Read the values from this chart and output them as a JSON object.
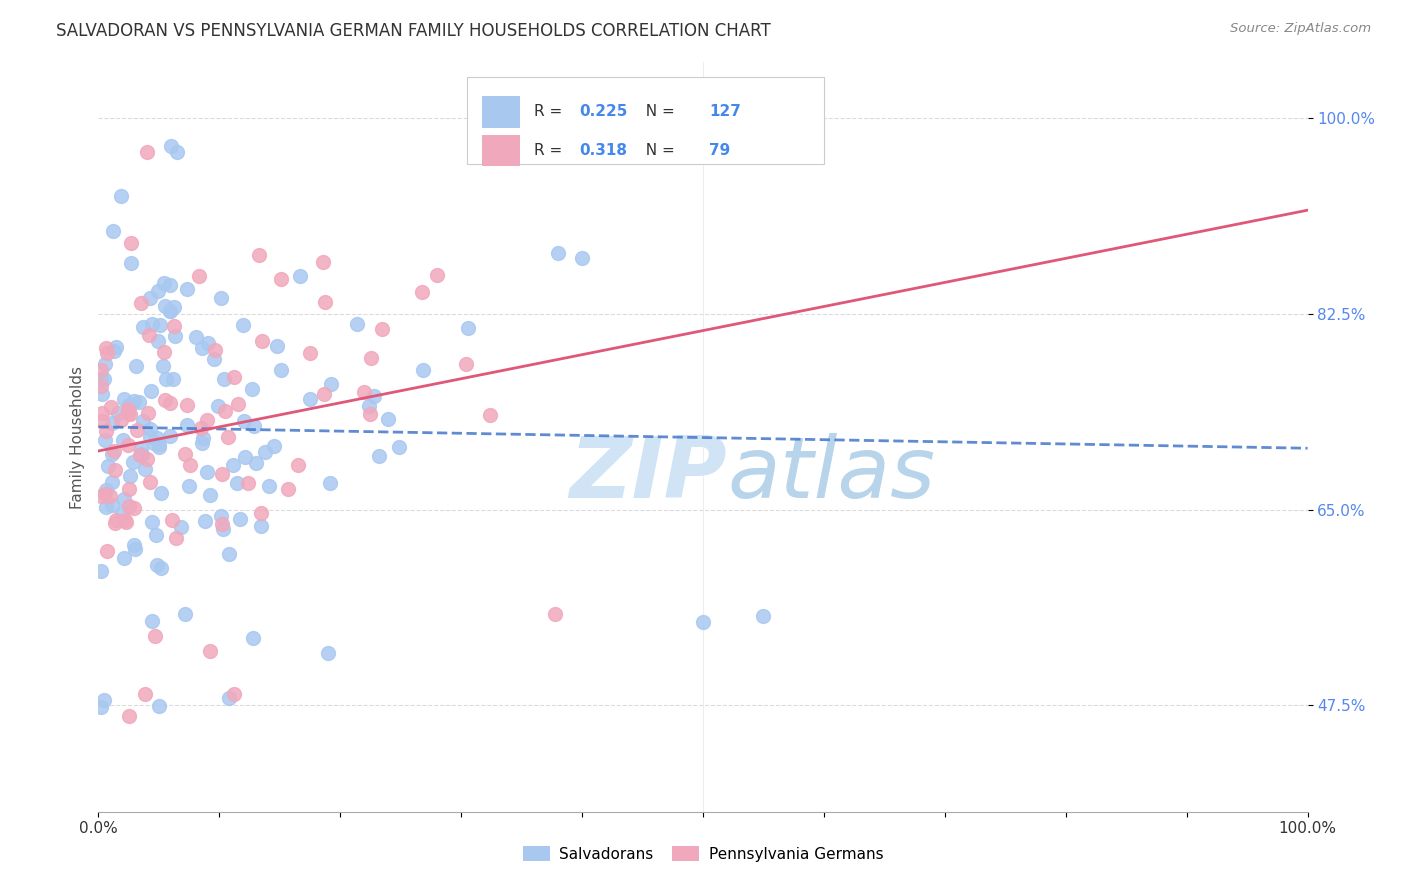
{
  "title": "SALVADORAN VS PENNSYLVANIA GERMAN FAMILY HOUSEHOLDS CORRELATION CHART",
  "source": "Source: ZipAtlas.com",
  "ylabel": "Family Households",
  "legend_blue_R": "0.225",
  "legend_blue_N": "127",
  "legend_pink_R": "0.318",
  "legend_pink_N": "79",
  "blue_color": "#A8C8F0",
  "pink_color": "#F0A8BC",
  "blue_line_color": "#4477CC",
  "pink_line_color": "#E05878",
  "ytick_labels": [
    "47.5%",
    "65.0%",
    "82.5%",
    "100.0%"
  ],
  "ytick_positions": [
    0.475,
    0.65,
    0.825,
    1.0
  ],
  "xlim": [
    0.0,
    1.0
  ],
  "ylim": [
    0.38,
    1.05
  ],
  "grid_color": "#CCCCCC",
  "watermark_color": "#D0E4F5"
}
